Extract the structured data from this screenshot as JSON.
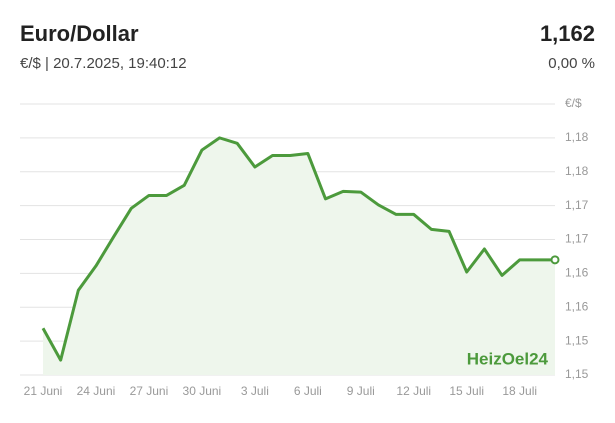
{
  "header": {
    "title": "Euro/Dollar",
    "subtitle": "€/$ | 20.7.2025, 19:40:12",
    "value": "1,162",
    "change": "0,00 %"
  },
  "chart_data": {
    "type": "line",
    "watermark": "HeizOel24",
    "categories": [
      "21 Juni",
      null,
      null,
      "24 Juni",
      null,
      null,
      "27 Juni",
      null,
      null,
      "30 Juni",
      null,
      null,
      "3 Juli",
      null,
      null,
      "6 Juli",
      null,
      null,
      "9 Juli",
      null,
      null,
      "12 Juli",
      null,
      null,
      "15 Juli",
      null,
      null,
      "18 Juli",
      null,
      null
    ],
    "series": [
      {
        "name": "Euro/Dollar",
        "color": "#4c9a3c",
        "values": [
          1.1519,
          1.1472,
          1.1575,
          1.1611,
          1.1654,
          1.1696,
          1.1715,
          1.1715,
          1.173,
          1.1782,
          1.18,
          1.1792,
          1.1757,
          1.1774,
          1.1774,
          1.1777,
          1.171,
          1.1721,
          1.172,
          1.1701,
          1.1687,
          1.1687,
          1.1665,
          1.1662,
          1.1602,
          1.1636,
          1.1597,
          1.162,
          1.162,
          1.162
        ]
      }
    ],
    "ylim": [
      1.145,
      1.185
    ],
    "yticks": [
      {
        "value": 1.145,
        "label": "1,15"
      },
      {
        "value": 1.15,
        "label": "1,15"
      },
      {
        "value": 1.155,
        "label": "1,16"
      },
      {
        "value": 1.16,
        "label": "1,16"
      },
      {
        "value": 1.165,
        "label": "1,17"
      },
      {
        "value": 1.17,
        "label": "1,17"
      },
      {
        "value": 1.175,
        "label": "1,18"
      },
      {
        "value": 1.18,
        "label": "1,18"
      },
      {
        "value": 1.185,
        "label": "€/$"
      }
    ],
    "grid": true,
    "area": true
  }
}
